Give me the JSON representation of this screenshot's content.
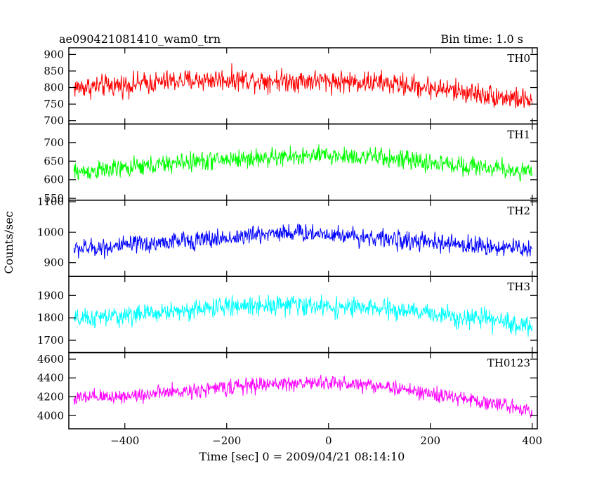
{
  "header": {
    "title": "ae090421081410_wam0_trn",
    "bin_time": "Bin time: 1.0 s"
  },
  "ylabel": "Counts/sec",
  "xlabel": "Time [sec] 0 = 2009/04/21 08:14:10",
  "chart_data": {
    "type": "line",
    "title": "ae090421081410_wam0_trn",
    "subtitle": "Bin time: 1.0 s",
    "xlabel": "Time [sec] 0 = 2009/04/21 08:14:10",
    "ylabel": "Counts/sec",
    "xlim": [
      -510,
      410
    ],
    "x_ticks": [
      -400,
      -200,
      0,
      200,
      400
    ],
    "x_tick_labels": [
      "−400",
      "−200",
      "0",
      "200",
      "400"
    ],
    "x_range": [
      -500,
      400
    ],
    "x_step": 1.0,
    "panels": [
      {
        "name": "TH0",
        "color": "#ff0000",
        "ylim": [
          690,
          920
        ],
        "yticks": [
          700,
          750,
          800,
          850,
          900
        ],
        "trend_x": [
          -500,
          -400,
          -300,
          -200,
          -100,
          0,
          100,
          200,
          300,
          350,
          400
        ],
        "trend_y": [
          800,
          808,
          820,
          825,
          822,
          820,
          815,
          800,
          780,
          770,
          760
        ],
        "noise_amplitude": 50
      },
      {
        "name": "TH1",
        "color": "#00ff00",
        "ylim": [
          545,
          750
        ],
        "yticks": [
          550,
          600,
          650,
          700
        ],
        "trend_x": [
          -500,
          -400,
          -300,
          -200,
          -100,
          0,
          100,
          200,
          300,
          400
        ],
        "trend_y": [
          620,
          630,
          645,
          655,
          660,
          665,
          660,
          645,
          635,
          620
        ],
        "noise_amplitude": 38
      },
      {
        "name": "TH2",
        "color": "#0000ff",
        "ylim": [
          855,
          1105
        ],
        "yticks": [
          900,
          1000,
          1100
        ],
        "trend_x": [
          -500,
          -400,
          -300,
          -200,
          -100,
          0,
          100,
          200,
          300,
          400
        ],
        "trend_y": [
          945,
          955,
          970,
          980,
          1000,
          995,
          980,
          965,
          955,
          945
        ],
        "noise_amplitude": 45
      },
      {
        "name": "TH3",
        "color": "#00ffff",
        "ylim": [
          1645,
          1985
        ],
        "yticks": [
          1700,
          1800,
          1900
        ],
        "trend_x": [
          -500,
          -400,
          -300,
          -200,
          -100,
          0,
          100,
          200,
          300,
          400
        ],
        "trend_y": [
          1790,
          1810,
          1830,
          1850,
          1860,
          1850,
          1840,
          1820,
          1795,
          1760
        ],
        "noise_amplitude": 65
      },
      {
        "name": "TH0123",
        "color": "#ff00ff",
        "ylim": [
          3860,
          4670
        ],
        "yticks": [
          4000,
          4200,
          4400,
          4600
        ],
        "trend_x": [
          -500,
          -400,
          -300,
          -200,
          -100,
          0,
          100,
          200,
          300,
          400
        ],
        "trend_y": [
          4180,
          4210,
          4250,
          4300,
          4340,
          4350,
          4320,
          4230,
          4150,
          4060
        ],
        "noise_amplitude": 120
      }
    ]
  }
}
